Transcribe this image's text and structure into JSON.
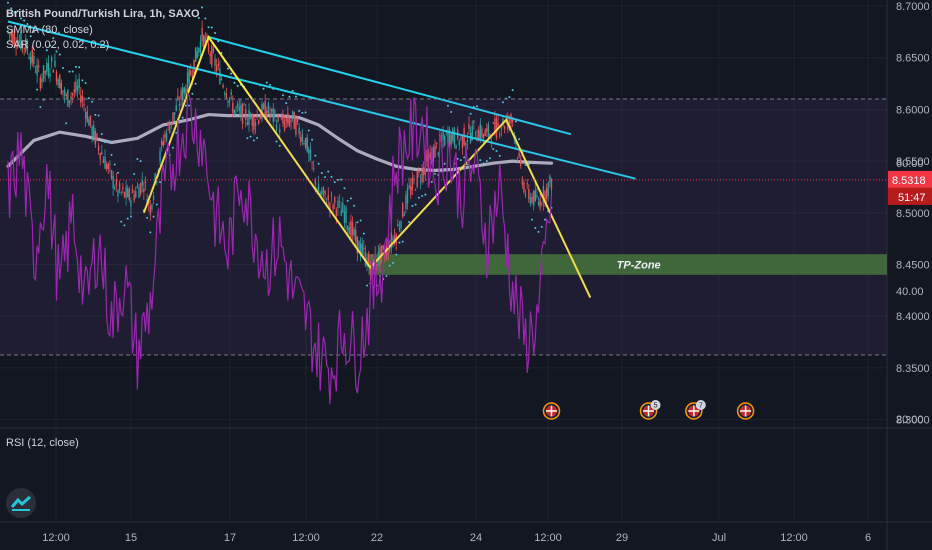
{
  "header": {
    "symbol_line": "British Pound/Turkish Lira, 1h, SAXO",
    "smma_label": "SMMA (80, close)",
    "sar_label": "SAR (0.02, 0.02, 0.2)",
    "rsi_label": "RSI (12, close)"
  },
  "colors": {
    "background": "#131722",
    "trendline": "#22d3ee",
    "zigzag": "#ffeb3b",
    "smma": "#b2b5be",
    "sar": "#4dd0e1",
    "candle_up": "#26a69a",
    "candle_down": "#ef5350",
    "rsi": "#9c27b0",
    "tp_zone": "#38692c",
    "price_label": "#f23645"
  },
  "annotations": {
    "tp_zone_label": "TP-Zone",
    "flag_badges": [
      "5",
      "7"
    ]
  },
  "chart_data": [
    {
      "type": "candlestick",
      "title": "British Pound/Turkish Lira, 1h, SAXO",
      "yaxis": {
        "ticks": [
          8.3,
          8.35,
          8.4,
          8.45,
          8.5,
          8.55,
          8.6,
          8.65,
          8.7
        ],
        "tick_labels": [
          "8.3000",
          "8.3500",
          "8.4000",
          "8.4500",
          "8.5000",
          "8.5500",
          "8.6000",
          "8.6500",
          "8.7000"
        ],
        "ylim": [
          8.295,
          8.705
        ],
        "side": "right"
      },
      "xaxis": {
        "tick_labels": [
          "12:00",
          "15",
          "17",
          "12:00",
          "22",
          "24",
          "12:00",
          "29",
          "Jul",
          "12:00",
          "6"
        ]
      },
      "last_price": 8.5318,
      "last_price_label": "8.5318",
      "countdown_label": "51:47",
      "price_path": [
        [
          0,
          8.675
        ],
        [
          3,
          8.66
        ],
        [
          5,
          8.63
        ],
        [
          7,
          8.645
        ],
        [
          9,
          8.61
        ],
        [
          11,
          8.62
        ],
        [
          13,
          8.58
        ],
        [
          15,
          8.55
        ],
        [
          17,
          8.52
        ],
        [
          19,
          8.515
        ],
        [
          21,
          8.53
        ],
        [
          22,
          8.505
        ],
        [
          24,
          8.57
        ],
        [
          26,
          8.6
        ],
        [
          28,
          8.63
        ],
        [
          30,
          8.67
        ],
        [
          31,
          8.66
        ],
        [
          33,
          8.63
        ],
        [
          35,
          8.6
        ],
        [
          38,
          8.59
        ],
        [
          40,
          8.6
        ],
        [
          42,
          8.585
        ],
        [
          44,
          8.59
        ],
        [
          46,
          8.57
        ],
        [
          48,
          8.52
        ],
        [
          50,
          8.51
        ],
        [
          52,
          8.5
        ],
        [
          54,
          8.47
        ],
        [
          56,
          8.45
        ],
        [
          58,
          8.46
        ],
        [
          60,
          8.48
        ],
        [
          62,
          8.52
        ],
        [
          64,
          8.54
        ],
        [
          66,
          8.56
        ],
        [
          68,
          8.575
        ],
        [
          70,
          8.57
        ],
        [
          72,
          8.58
        ],
        [
          74,
          8.575
        ],
        [
          76,
          8.585
        ],
        [
          78,
          8.59
        ],
        [
          79,
          8.55
        ],
        [
          80,
          8.52
        ],
        [
          82,
          8.51
        ],
        [
          83,
          8.52
        ],
        [
          84,
          8.53
        ]
      ],
      "smma_path": [
        [
          0,
          8.545
        ],
        [
          4,
          8.57
        ],
        [
          8,
          8.578
        ],
        [
          12,
          8.574
        ],
        [
          16,
          8.568
        ],
        [
          20,
          8.572
        ],
        [
          24,
          8.585
        ],
        [
          28,
          8.59
        ],
        [
          31,
          8.595
        ],
        [
          34,
          8.594
        ],
        [
          38,
          8.594
        ],
        [
          42,
          8.594
        ],
        [
          45,
          8.592
        ],
        [
          48,
          8.585
        ],
        [
          51,
          8.572
        ],
        [
          54,
          8.56
        ],
        [
          57,
          8.552
        ],
        [
          60,
          8.545
        ],
        [
          63,
          8.542
        ],
        [
          66,
          8.541
        ],
        [
          69,
          8.542
        ],
        [
          72,
          8.545
        ],
        [
          75,
          8.548
        ],
        [
          78,
          8.55
        ],
        [
          80,
          8.549
        ],
        [
          84,
          8.548
        ]
      ],
      "trendlines": [
        {
          "from": [
            0,
            8.685
          ],
          "to": [
            97,
            8.533
          ]
        },
        {
          "from": [
            31,
            8.67
          ],
          "to": [
            87,
            8.576
          ]
        }
      ],
      "zigzag": [
        [
          21,
          8.5
        ],
        [
          31,
          8.67
        ],
        [
          56,
          8.447
        ],
        [
          77,
          8.59
        ],
        [
          90,
          8.418
        ]
      ],
      "tp_zone": {
        "x_start": 56,
        "y_low": 8.44,
        "y_high": 8.46,
        "label": "TP-Zone"
      },
      "event_flags": [
        {
          "x": 84
        },
        {
          "x": 99,
          "badge": "5"
        },
        {
          "x": 106,
          "badge": "7"
        },
        {
          "x": 114
        }
      ]
    },
    {
      "type": "line",
      "title": "RSI (12, close)",
      "yaxis": {
        "ticks": [
          20,
          40,
          60
        ],
        "tick_labels": [
          "20.00",
          "40.00",
          "60.00"
        ],
        "ylim": [
          17,
          78
        ]
      },
      "bands": [
        70,
        30
      ],
      "x": [
        0,
        2,
        4,
        6,
        8,
        10,
        12,
        14,
        16,
        18,
        20,
        22,
        24,
        26,
        28,
        30,
        32,
        34,
        36,
        38,
        40,
        42,
        44,
        46,
        48,
        50,
        52,
        54,
        56,
        58,
        60,
        62,
        64,
        66,
        68,
        70,
        72,
        74,
        76,
        78,
        80,
        82,
        84
      ],
      "values": [
        55,
        62,
        45,
        58,
        40,
        52,
        38,
        48,
        35,
        42,
        30,
        38,
        55,
        62,
        68,
        64,
        52,
        46,
        58,
        50,
        44,
        48,
        40,
        36,
        30,
        28,
        34,
        30,
        38,
        45,
        60,
        64,
        66,
        58,
        62,
        55,
        60,
        48,
        56,
        40,
        32,
        36,
        55
      ]
    }
  ]
}
